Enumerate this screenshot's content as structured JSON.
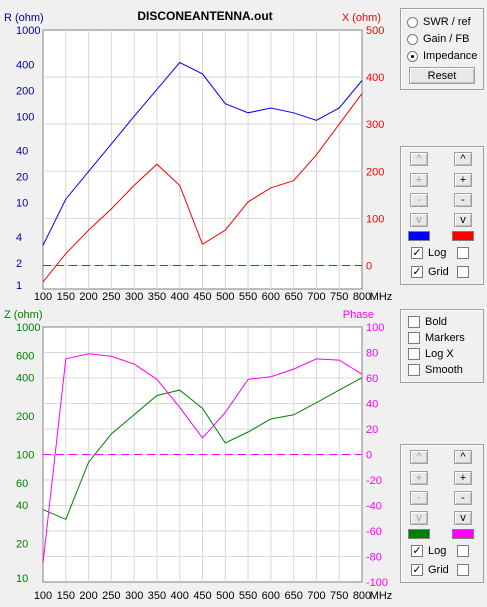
{
  "title": "DISCONEANTENNA.out",
  "x_unit": "MHz",
  "chart_data": [
    {
      "type": "line",
      "xlabel": "",
      "x_ticks": [
        "100",
        "150",
        "200",
        "250",
        "300",
        "350",
        "400",
        "450",
        "500",
        "550",
        "600",
        "650",
        "700",
        "750",
        "800"
      ],
      "left_axis_label": "R (ohm)",
      "left_axis_scale": "log",
      "left_ticks": [
        "1000",
        "400",
        "200",
        "100",
        "40",
        "20",
        "10",
        "4",
        "2",
        "1"
      ],
      "ylim_left": [
        1,
        1000
      ],
      "right_axis_label": "X (ohm)",
      "right_ticks": [
        "500",
        "400",
        "300",
        "200",
        "100",
        "0"
      ],
      "ylim_right": [
        -50,
        500
      ],
      "x": [
        100,
        150,
        200,
        250,
        300,
        350,
        400,
        450,
        500,
        550,
        600,
        650,
        700,
        750,
        800
      ],
      "series": [
        {
          "axis": "left",
          "color": "#0000ff",
          "values": [
            3.2,
            11,
            23,
            48,
            100,
            205,
            420,
            310,
            140,
            110,
            125,
            110,
            90,
            125,
            260
          ]
        },
        {
          "axis": "right",
          "color": "#ff0000",
          "values": [
            -35,
            25,
            75,
            120,
            170,
            215,
            170,
            45,
            75,
            135,
            165,
            180,
            235,
            300,
            365
          ]
        },
        {
          "axis": "right",
          "color": "#ff0000",
          "dashed": true,
          "values": [
            0,
            0,
            0,
            0,
            0,
            0,
            0,
            0,
            0,
            0,
            0,
            0,
            0,
            0,
            0
          ]
        }
      ]
    },
    {
      "type": "line",
      "xlabel": "",
      "x_ticks": [
        "100",
        "150",
        "200",
        "250",
        "300",
        "350",
        "400",
        "450",
        "500",
        "550",
        "600",
        "650",
        "700",
        "750",
        "800"
      ],
      "left_axis_label": "Z (ohm)",
      "left_axis_scale": "log",
      "left_ticks": [
        "1000",
        "600",
        "400",
        "200",
        "100",
        "60",
        "40",
        "20",
        "10"
      ],
      "ylim_left": [
        10,
        1000
      ],
      "right_axis_label": "Phase",
      "right_ticks": [
        "100",
        "80",
        "60",
        "40",
        "20",
        "0",
        "-20",
        "-40",
        "-60",
        "-80",
        "-100"
      ],
      "ylim_right": [
        -100,
        100
      ],
      "x": [
        100,
        150,
        200,
        250,
        300,
        350,
        400,
        450,
        500,
        550,
        600,
        650,
        700,
        750,
        800
      ],
      "series": [
        {
          "axis": "left",
          "color": "#008000",
          "values": [
            37,
            31,
            87,
            145,
            205,
            290,
            320,
            230,
            123,
            150,
            190,
            205,
            255,
            320,
            400
          ]
        },
        {
          "axis": "right",
          "color": "#ff00ff",
          "values": [
            -85,
            75,
            79,
            77,
            71,
            59,
            37,
            13,
            33,
            59,
            61,
            67,
            75,
            74,
            63
          ]
        },
        {
          "axis": "right",
          "color": "#ff00ff",
          "dashed": true,
          "values": [
            0,
            0,
            0,
            0,
            0,
            0,
            0,
            0,
            0,
            0,
            0,
            0,
            0,
            0,
            0
          ]
        }
      ]
    }
  ],
  "mode_panel": {
    "options": [
      "SWR / ref",
      "Gain / FB",
      "Impedance"
    ],
    "selected": "Impedance",
    "reset_label": "Reset"
  },
  "options_panel": {
    "items": [
      {
        "label": "Bold",
        "checked": false
      },
      {
        "label": "Markers",
        "checked": false
      },
      {
        "label": "Log X",
        "checked": false
      },
      {
        "label": "Smooth",
        "checked": false
      }
    ]
  },
  "top_scale_panel": {
    "buttons": [
      "^",
      "^",
      "+",
      "+",
      "-",
      "-",
      "v",
      "v"
    ],
    "left_color": "#0000ff",
    "right_color": "#ff0000",
    "log_label": "Log",
    "grid_label": "Grid",
    "log_checked": true,
    "grid_checked": true
  },
  "bottom_scale_panel": {
    "buttons": [
      "^",
      "^",
      "+",
      "+",
      "-",
      "-",
      "v",
      "v"
    ],
    "left_color": "#008000",
    "right_color": "#ff00ff",
    "log_label": "Log",
    "grid_label": "Grid",
    "log_checked": true,
    "grid_checked": true
  },
  "check_mark": "✓"
}
